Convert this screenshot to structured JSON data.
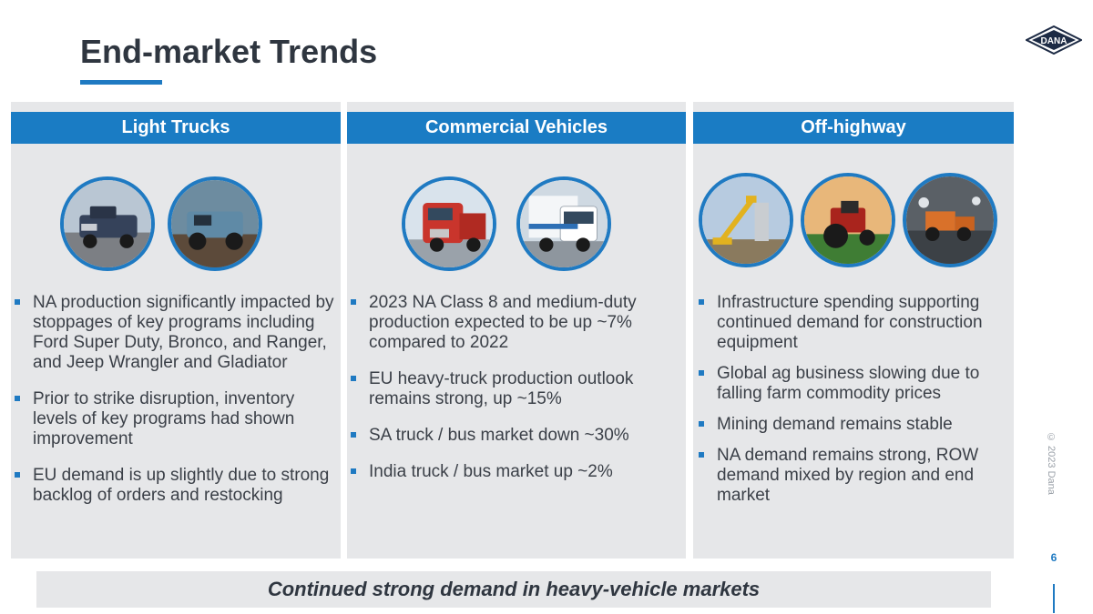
{
  "slide": {
    "title": "End-market Trends",
    "logo_text": "DANA",
    "banner": "Continued strong demand in heavy-vehicle markets",
    "copyright": "© 2023 Dana",
    "page_number": "6"
  },
  "colors": {
    "accent": "#1a7cc4",
    "panel_bg": "#e6e7e9",
    "title": "#2f3640"
  },
  "panels": [
    {
      "header": "Light Trucks",
      "images": [
        "pickup-truck-photo",
        "off-road-suv-photo"
      ],
      "bullets": [
        "NA production significantly impacted by stoppages of key programs including Ford Super Duty, Bronco, and Ranger, and Jeep Wrangler and Gladiator",
        "Prior to strike disruption, inventory levels of key programs had shown improvement",
        "EU demand is up slightly due to strong backlog of orders and restocking"
      ]
    },
    {
      "header": "Commercial Vehicles",
      "images": [
        "semi-truck-photo",
        "medium-duty-truck-photo"
      ],
      "bullets": [
        "2023 NA Class 8 and medium-duty production expected to be up ~7% compared to 2022",
        "EU heavy-truck production outlook remains strong, up ~15%",
        "SA truck / bus market down ~30%",
        "India truck / bus market up ~2%"
      ]
    },
    {
      "header": "Off-highway",
      "images": [
        "construction-lift-photo",
        "tractor-photo",
        "mining-loader-photo"
      ],
      "bullets": [
        "Infrastructure spending supporting continued demand for construction equipment",
        "Global ag business slowing due to falling farm commodity prices",
        "Mining demand remains stable",
        "NA demand remains strong, ROW demand mixed by region and end market"
      ]
    }
  ]
}
